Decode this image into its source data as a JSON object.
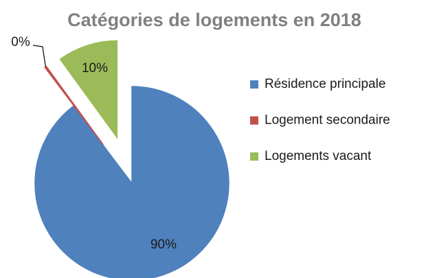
{
  "chart_data": {
    "type": "pie",
    "title": "Catégories de logements en 2018",
    "categories": [
      "Résidence principale",
      "Logement secondaire",
      "Logements vacant"
    ],
    "values": [
      89.7,
      0.3,
      10
    ],
    "value_labels": [
      "90%",
      "0%",
      "10%"
    ],
    "colors": [
      "#4f81bd",
      "#c0504d",
      "#9bbb59"
    ],
    "exploded": [
      false,
      true,
      true
    ],
    "legend": "right"
  }
}
